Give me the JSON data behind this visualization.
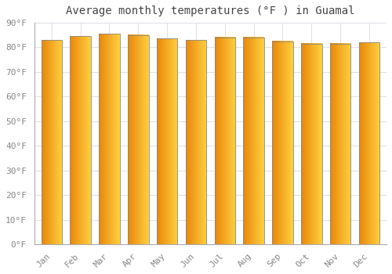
{
  "title": "Average monthly temperatures (°F ) in Guamal",
  "months": [
    "Jan",
    "Feb",
    "Mar",
    "Apr",
    "May",
    "Jun",
    "Jul",
    "Aug",
    "Sep",
    "Oct",
    "Nov",
    "Dec"
  ],
  "values": [
    83,
    84.5,
    85.5,
    85,
    83.5,
    83,
    84,
    84,
    82.5,
    81.5,
    81.5,
    82
  ],
  "ylim": [
    0,
    90
  ],
  "yticks": [
    0,
    10,
    20,
    30,
    40,
    50,
    60,
    70,
    80,
    90
  ],
  "ytick_labels": [
    "0°F",
    "10°F",
    "20°F",
    "30°F",
    "40°F",
    "50°F",
    "60°F",
    "70°F",
    "80°F",
    "90°F"
  ],
  "bar_color_left": "#E8870A",
  "bar_color_right": "#FFD040",
  "background_color": "#FFFFFF",
  "grid_color": "#E0E0E8",
  "title_fontsize": 10,
  "tick_fontsize": 8,
  "bar_edge_color": "#888888",
  "bar_width": 0.72
}
